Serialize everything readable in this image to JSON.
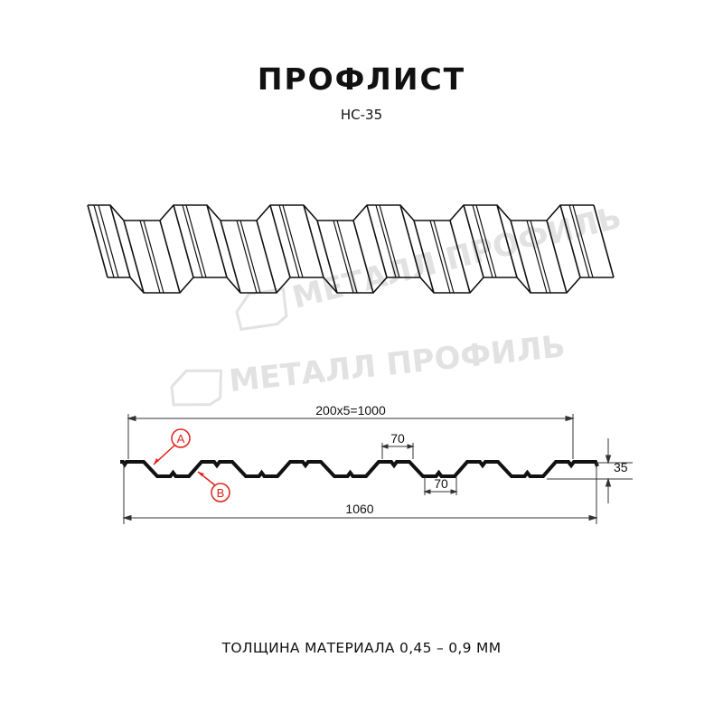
{
  "header": {
    "title": "ПРОФЛИСТ",
    "subtitle": "НС-35"
  },
  "watermark": {
    "text": "МЕТАЛЛ ПРОФИЛЬ"
  },
  "drawing": {
    "pitch_dimension": "200x5=1000",
    "total_width": "1060",
    "crest_width": "70",
    "valley_width": "70",
    "height": "35",
    "marker_a": "A",
    "marker_b": "B",
    "marker_color": "#e0201c"
  },
  "footer": {
    "thickness": "ТОЛЩИНА МАТЕРИАЛА 0,45 – 0,9 ММ"
  }
}
